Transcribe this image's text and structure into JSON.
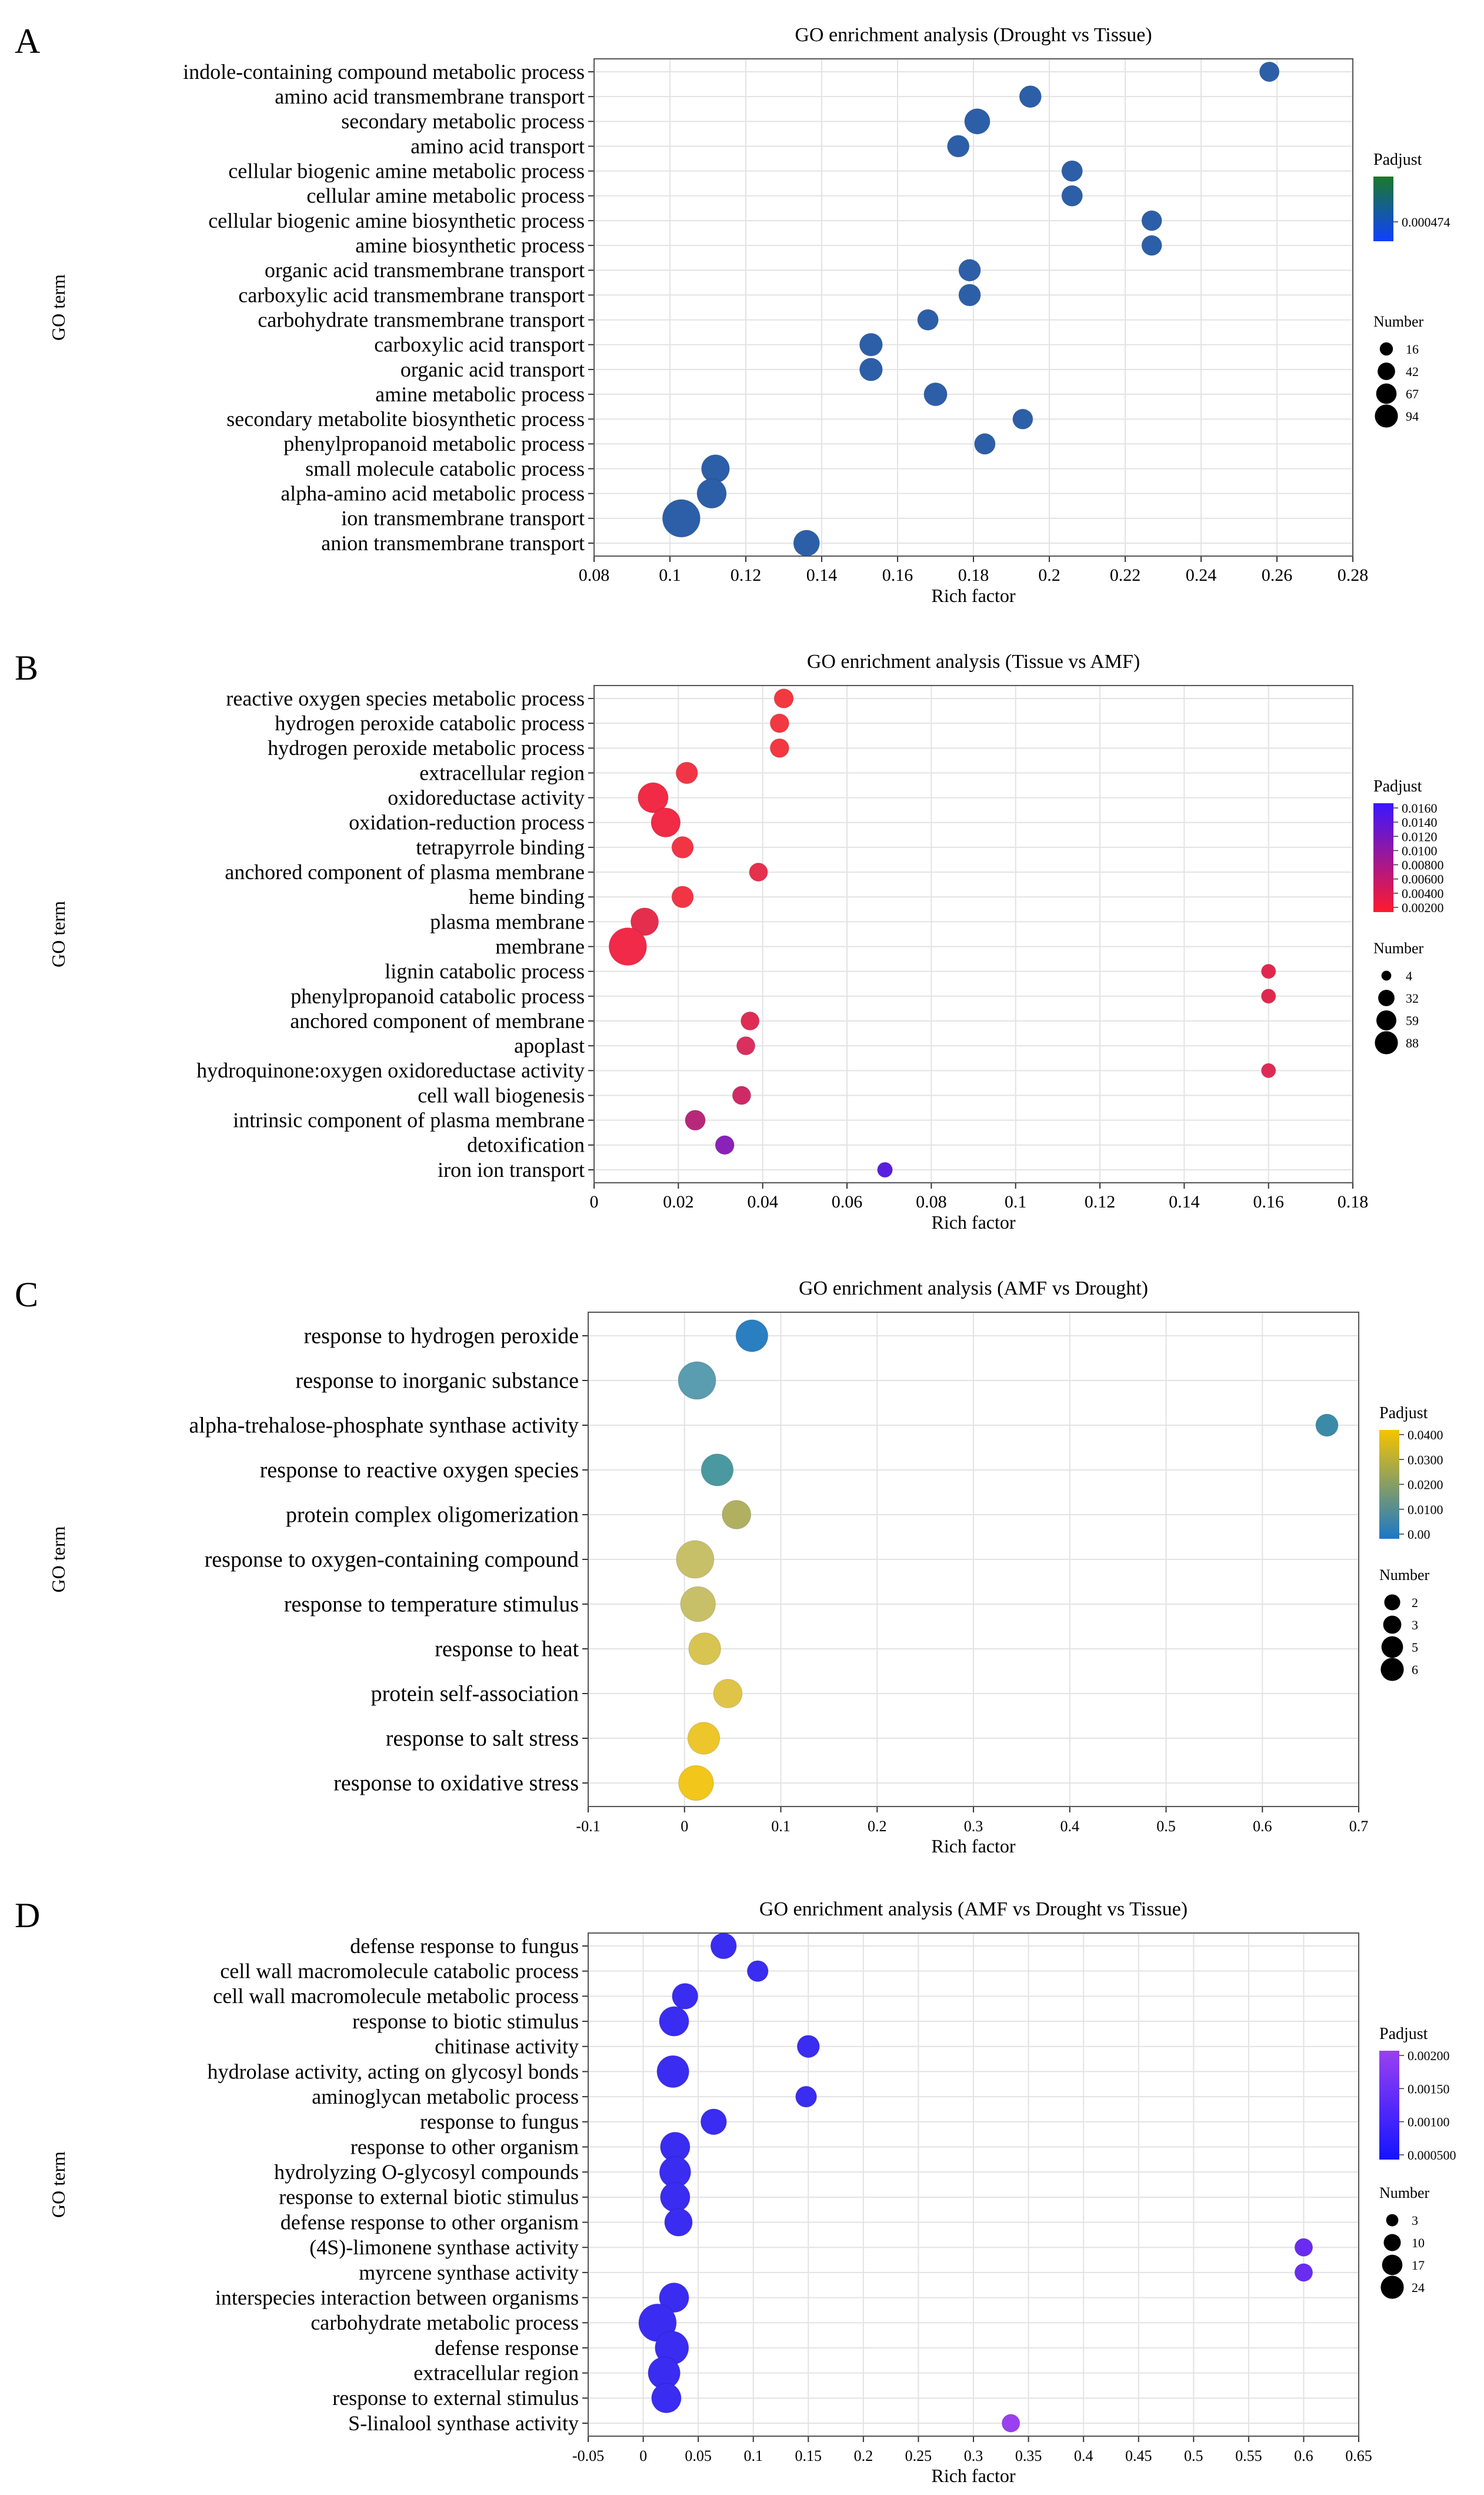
{
  "figure": {
    "panel_letters": [
      "A",
      "B",
      "C",
      "D"
    ]
  },
  "chart_data": [
    {
      "type": "scatter",
      "title": "GO enrichment analysis (Drought vs Tissue)",
      "xlabel": "Rich factor",
      "ylabel": "GO term",
      "xlim": [
        0.08,
        0.28
      ],
      "xticks": [
        "0.08",
        "0.1",
        "0.12",
        "0.14",
        "0.16",
        "0.18",
        "0.2",
        "0.22",
        "0.24",
        "0.26",
        "0.28"
      ],
      "grid": true,
      "color_legend": {
        "title": "Padjust",
        "ticks": [
          "0.000474"
        ],
        "colors": [
          "#1a7a2a",
          "#1040ff"
        ]
      },
      "size_legend": {
        "title": "Number",
        "labels": [
          "16",
          "42",
          "67",
          "94"
        ]
      },
      "points": [
        {
          "term": "indole-containing compound metabolic process",
          "x": 0.258,
          "n": 16,
          "color": "#2c5fa8"
        },
        {
          "term": "amino acid transmembrane transport",
          "x": 0.195,
          "n": 22,
          "color": "#2c5fa8"
        },
        {
          "term": "secondary metabolic process",
          "x": 0.181,
          "n": 34,
          "color": "#2c5fa8"
        },
        {
          "term": "amino acid transport",
          "x": 0.176,
          "n": 22,
          "color": "#2c5fa8"
        },
        {
          "term": "cellular biogenic amine metabolic process",
          "x": 0.206,
          "n": 19,
          "color": "#2c5fa8"
        },
        {
          "term": "cellular amine metabolic process",
          "x": 0.206,
          "n": 19,
          "color": "#2c5fa8"
        },
        {
          "term": "cellular biogenic amine biosynthetic process",
          "x": 0.227,
          "n": 17,
          "color": "#2c5fa8"
        },
        {
          "term": "amine biosynthetic process",
          "x": 0.227,
          "n": 17,
          "color": "#2c5fa8"
        },
        {
          "term": "organic acid transmembrane transport",
          "x": 0.179,
          "n": 22,
          "color": "#2c5fa8"
        },
        {
          "term": "carboxylic acid transmembrane transport",
          "x": 0.179,
          "n": 22,
          "color": "#2c5fa8"
        },
        {
          "term": "carbohydrate transmembrane transport",
          "x": 0.168,
          "n": 19,
          "color": "#2c5fa8"
        },
        {
          "term": "carboxylic acid transport",
          "x": 0.153,
          "n": 25,
          "color": "#2c5fa8"
        },
        {
          "term": "organic acid transport",
          "x": 0.153,
          "n": 25,
          "color": "#2c5fa8"
        },
        {
          "term": "amine metabolic process",
          "x": 0.17,
          "n": 26,
          "color": "#2c5fa8"
        },
        {
          "term": "secondary metabolite biosynthetic process",
          "x": 0.193,
          "n": 17,
          "color": "#2c5fa8"
        },
        {
          "term": "phenylpropanoid metabolic process",
          "x": 0.183,
          "n": 19,
          "color": "#2c5fa8"
        },
        {
          "term": "small molecule catabolic process",
          "x": 0.112,
          "n": 44,
          "color": "#2c5fa8"
        },
        {
          "term": "alpha-amino acid metabolic process",
          "x": 0.111,
          "n": 50,
          "color": "#2c5fa8"
        },
        {
          "term": "ion transmembrane transport",
          "x": 0.103,
          "n": 94,
          "color": "#2c5fa8"
        },
        {
          "term": "anion transmembrane transport",
          "x": 0.136,
          "n": 36,
          "color": "#2c5fa8"
        }
      ]
    },
    {
      "type": "scatter",
      "title": "GO enrichment analysis (Tissue vs AMF)",
      "xlabel": "Rich factor",
      "ylabel": "GO term",
      "xlim": [
        0,
        0.18
      ],
      "xticks": [
        "0",
        "0.02",
        "0.04",
        "0.06",
        "0.08",
        "0.1",
        "0.12",
        "0.14",
        "0.16",
        "0.18"
      ],
      "grid": true,
      "color_legend": {
        "title": "Padjust",
        "ticks": [
          "0.0160",
          "0.0140",
          "0.0120",
          "0.0100",
          "0.00800",
          "0.00600",
          "0.00400",
          "0.00200"
        ],
        "colors": [
          "#3b16ff",
          "#ff1a2e"
        ]
      },
      "size_legend": {
        "title": "Number",
        "labels": [
          "4",
          "32",
          "59",
          "88"
        ]
      },
      "points": [
        {
          "term": "reactive oxygen species metabolic process",
          "x": 0.045,
          "n": 14,
          "color": "#f23840"
        },
        {
          "term": "hydrogen peroxide catabolic process",
          "x": 0.044,
          "n": 13,
          "color": "#f23840"
        },
        {
          "term": "hydrogen peroxide metabolic process",
          "x": 0.044,
          "n": 13,
          "color": "#f23840"
        },
        {
          "term": "extracellular region",
          "x": 0.022,
          "n": 20,
          "color": "#f23545"
        },
        {
          "term": "oxidoreductase activity",
          "x": 0.014,
          "n": 50,
          "color": "#f12a46"
        },
        {
          "term": "oxidation-reduction process",
          "x": 0.017,
          "n": 46,
          "color": "#f12a46"
        },
        {
          "term": "tetrapyrrole binding",
          "x": 0.021,
          "n": 20,
          "color": "#f23545"
        },
        {
          "term": "anchored component of plasma membrane",
          "x": 0.039,
          "n": 12,
          "color": "#e5304e"
        },
        {
          "term": "heme binding",
          "x": 0.021,
          "n": 20,
          "color": "#f23545"
        },
        {
          "term": "plasma membrane",
          "x": 0.012,
          "n": 40,
          "color": "#e52e4e"
        },
        {
          "term": "membrane",
          "x": 0.008,
          "n": 88,
          "color": "#f02a48"
        },
        {
          "term": "lignin catabolic process",
          "x": 0.16,
          "n": 5,
          "color": "#e0284e"
        },
        {
          "term": "phenylpropanoid catabolic process",
          "x": 0.16,
          "n": 5,
          "color": "#e0284e"
        },
        {
          "term": "anchored component of membrane",
          "x": 0.037,
          "n": 12,
          "color": "#de2c55"
        },
        {
          "term": "apoplast",
          "x": 0.036,
          "n": 12,
          "color": "#d93060"
        },
        {
          "term": "hydroquinone:oxygen oxidoreductase activity",
          "x": 0.16,
          "n": 5,
          "color": "#dc2c55"
        },
        {
          "term": "cell wall biogenesis",
          "x": 0.035,
          "n": 12,
          "color": "#d02a64"
        },
        {
          "term": "intrinsic component of plasma membrane",
          "x": 0.024,
          "n": 16,
          "color": "#b8287a"
        },
        {
          "term": "detoxification",
          "x": 0.031,
          "n": 13,
          "color": "#8a22b8"
        },
        {
          "term": "iron ion transport",
          "x": 0.069,
          "n": 6,
          "color": "#5a1ee0"
        }
      ]
    },
    {
      "type": "scatter",
      "title": "GO enrichment analysis (AMF vs Drought)",
      "xlabel": "Rich factor",
      "ylabel": "GO term",
      "xlim": [
        -0.1,
        0.7
      ],
      "xticks": [
        "-0.1",
        "0",
        "0.1",
        "0.2",
        "0.3",
        "0.4",
        "0.5",
        "0.6",
        "0.7"
      ],
      "grid": true,
      "color_legend": {
        "title": "Padjust",
        "ticks": [
          "0.0400",
          "0.0300",
          "0.0200",
          "0.0100",
          "0.00"
        ],
        "colors": [
          "#f5c400",
          "#1a78c8"
        ]
      },
      "size_legend": {
        "title": "Number",
        "labels": [
          "2",
          "3",
          "5",
          "6"
        ]
      },
      "points": [
        {
          "term": "response to hydrogen peroxide",
          "x": 0.07,
          "n": 4,
          "color": "#2a7fc0"
        },
        {
          "term": "response to inorganic substance",
          "x": 0.013,
          "n": 6,
          "color": "#5a9cb0"
        },
        {
          "term": "alpha-trehalose-phosphate synthase activity",
          "x": 0.667,
          "n": 1.5,
          "color": "#3a8aa8"
        },
        {
          "term": "response to reactive oxygen species",
          "x": 0.034,
          "n": 4,
          "color": "#4a98a0"
        },
        {
          "term": "protein complex oligomerization",
          "x": 0.054,
          "n": 3,
          "color": "#b0b060"
        },
        {
          "term": "response to oxygen-containing compound",
          "x": 0.011,
          "n": 6,
          "color": "#c8c068"
        },
        {
          "term": "response to temperature stimulus",
          "x": 0.014,
          "n": 5,
          "color": "#c8c068"
        },
        {
          "term": "response to heat",
          "x": 0.021,
          "n": 4,
          "color": "#d8c450"
        },
        {
          "term": "protein self-association",
          "x": 0.045,
          "n": 3,
          "color": "#e0c448"
        },
        {
          "term": "response to salt stress",
          "x": 0.02,
          "n": 4,
          "color": "#ecc62a"
        },
        {
          "term": "response to oxidative stress",
          "x": 0.012,
          "n": 5,
          "color": "#f2c61a"
        }
      ]
    },
    {
      "type": "scatter",
      "title": "GO enrichment analysis (AMF vs Drought vs Tissue)",
      "xlabel": "Rich factor",
      "ylabel": "GO term",
      "xlim": [
        -0.05,
        0.65
      ],
      "xticks": [
        "-0.05",
        "0",
        "0.05",
        "0.1",
        "0.15",
        "0.2",
        "0.25",
        "0.3",
        "0.35",
        "0.4",
        "0.45",
        "0.5",
        "0.55",
        "0.6",
        "0.65"
      ],
      "grid": true,
      "color_legend": {
        "title": "Padjust",
        "ticks": [
          "0.00200",
          "0.00150",
          "0.00100",
          "0.000500"
        ],
        "colors": [
          "#9a40f0",
          "#1414ff"
        ]
      },
      "size_legend": {
        "title": "Number",
        "labels": [
          "3",
          "10",
          "17",
          "24"
        ]
      },
      "points": [
        {
          "term": "defense response to fungus",
          "x": 0.073,
          "n": 9,
          "color": "#3a2cf0"
        },
        {
          "term": "cell wall macromolecule catabolic process",
          "x": 0.104,
          "n": 5,
          "color": "#3a2cf0"
        },
        {
          "term": "cell wall macromolecule metabolic process",
          "x": 0.038,
          "n": 9,
          "color": "#3a2cf0"
        },
        {
          "term": "response to biotic stimulus",
          "x": 0.028,
          "n": 13,
          "color": "#3a2cf0"
        },
        {
          "term": "chitinase activity",
          "x": 0.15,
          "n": 6,
          "color": "#3a2cf0"
        },
        {
          "term": "hydrolase activity, acting on glycosyl bonds",
          "x": 0.027,
          "n": 16,
          "color": "#3a2cf0"
        },
        {
          "term": "aminoglycan metabolic process",
          "x": 0.148,
          "n": 5,
          "color": "#3a2cf0"
        },
        {
          "term": "response to fungus",
          "x": 0.064,
          "n": 9,
          "color": "#3a2cf0"
        },
        {
          "term": "response to other organism",
          "x": 0.029,
          "n": 13,
          "color": "#3a2cf0"
        },
        {
          "term": "hydrolyzing O-glycosyl compounds",
          "x": 0.029,
          "n": 15,
          "color": "#3a2cf0"
        },
        {
          "term": "response to external biotic stimulus",
          "x": 0.029,
          "n": 13,
          "color": "#3a2cf0"
        },
        {
          "term": "defense response to other organism",
          "x": 0.032,
          "n": 11,
          "color": "#3a2cf0"
        },
        {
          "term": "(4S)-limonene synthase activity",
          "x": 0.6,
          "n": 3,
          "color": "#6a2cf0"
        },
        {
          "term": "myrcene synthase activity",
          "x": 0.6,
          "n": 3,
          "color": "#6a2cf0"
        },
        {
          "term": "interspecies interaction between organisms",
          "x": 0.028,
          "n": 13,
          "color": "#3a2cf0"
        },
        {
          "term": "carbohydrate metabolic process",
          "x": 0.013,
          "n": 24,
          "color": "#3a2cf0"
        },
        {
          "term": "defense response",
          "x": 0.026,
          "n": 18,
          "color": "#3a2cf0"
        },
        {
          "term": "extracellular region",
          "x": 0.019,
          "n": 16,
          "color": "#3a2cf0"
        },
        {
          "term": "response to external stimulus",
          "x": 0.021,
          "n": 13,
          "color": "#3a2cf0"
        },
        {
          "term": "S-linalool synthase activity",
          "x": 0.334,
          "n": 3,
          "color": "#9a40f0"
        }
      ]
    }
  ]
}
